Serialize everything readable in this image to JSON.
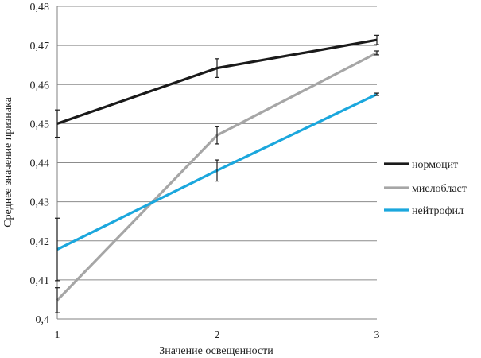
{
  "chart_data": {
    "type": "line",
    "title": "",
    "xlabel": "Значение освещенности",
    "ylabel": "Среднее значение признака",
    "x": [
      1,
      2,
      3
    ],
    "x_tick_labels": [
      "1",
      "2",
      "3"
    ],
    "ylim": [
      0.4,
      0.48
    ],
    "y_ticks": [
      0.4,
      0.41,
      0.42,
      0.43,
      0.44,
      0.45,
      0.46,
      0.47,
      0.48
    ],
    "y_tick_labels": [
      "0,4",
      "0,41",
      "0,42",
      "0,43",
      "0,44",
      "0,45",
      "0,46",
      "0,47",
      "0,48"
    ],
    "grid": "horizontal",
    "legend_position": "right",
    "series": [
      {
        "name": "нормоцит",
        "color": "#1a1a1a",
        "values": [
          0.45,
          0.4642,
          0.4714
        ],
        "error": [
          0.0035,
          0.0024,
          0.0012
        ]
      },
      {
        "name": "миелобласт",
        "color": "#a6a6a6",
        "values": [
          0.4048,
          0.447,
          0.4681
        ],
        "error": [
          0.0032,
          0.0022,
          0.0005
        ]
      },
      {
        "name": "нейтрофил",
        "color": "#1ba7dd",
        "values": [
          0.4178,
          0.438,
          0.4575
        ],
        "error": [
          0.008,
          0.0027,
          0.0003
        ]
      }
    ]
  }
}
